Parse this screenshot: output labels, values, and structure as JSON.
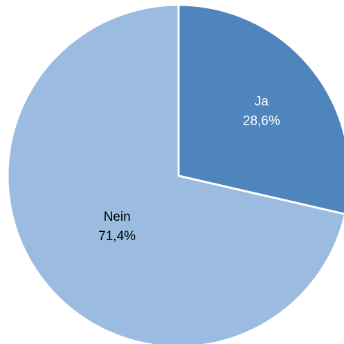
{
  "chart_data": {
    "type": "pie",
    "title": "",
    "legend": "none",
    "slices": [
      {
        "name": "Ja",
        "value": 28.6,
        "label": "28,6%",
        "color": "#4f85bd",
        "label_color": "#ffffff"
      },
      {
        "name": "Nein",
        "value": 71.4,
        "label": "71,4%",
        "color": "#9bbbe0",
        "label_color": "#000000"
      }
    ]
  }
}
